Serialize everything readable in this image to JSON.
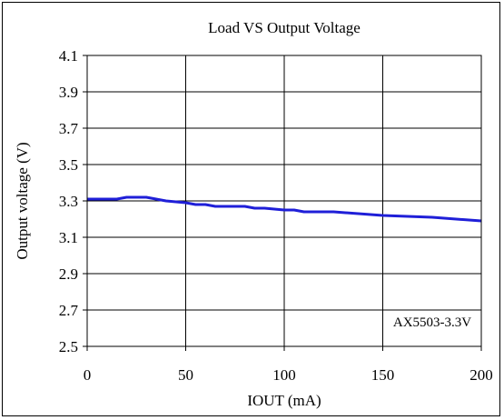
{
  "chart_data": {
    "type": "line",
    "title": "Load VS Output Voltage",
    "xlabel": "IOUT (mA)",
    "ylabel": "Output voltage (V)",
    "xlim": [
      0,
      200
    ],
    "ylim": [
      2.5,
      4.1
    ],
    "x_ticks": [
      0,
      50,
      100,
      150,
      200
    ],
    "y_ticks": [
      2.5,
      2.7,
      2.9,
      3.1,
      3.3,
      3.5,
      3.7,
      3.9,
      4.1
    ],
    "x_tick_labels": [
      "0",
      "50",
      "100",
      "150",
      "200"
    ],
    "y_tick_labels": [
      "2.5",
      "2.7",
      "2.9",
      "3.1",
      "3.3",
      "3.5",
      "3.7",
      "3.9",
      "4.1"
    ],
    "grid": true,
    "series": [
      {
        "color": "#1f1fd8",
        "x": [
          0,
          10,
          15,
          20,
          30,
          40,
          50,
          55,
          60,
          65,
          70,
          80,
          85,
          90,
          100,
          105,
          110,
          125,
          150,
          175,
          200
        ],
        "y": [
          3.31,
          3.31,
          3.31,
          3.32,
          3.32,
          3.3,
          3.29,
          3.28,
          3.28,
          3.27,
          3.27,
          3.27,
          3.26,
          3.26,
          3.25,
          3.25,
          3.24,
          3.24,
          3.22,
          3.21,
          3.19
        ]
      }
    ],
    "annotation": "AX5503-3.3V"
  }
}
